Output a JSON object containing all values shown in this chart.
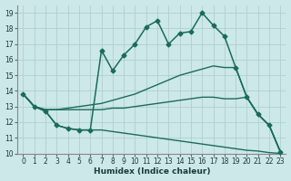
{
  "xlabel": "Humidex (Indice chaleur)",
  "xlim": [
    -0.5,
    23.5
  ],
  "ylim": [
    10,
    19.5
  ],
  "xticks": [
    0,
    1,
    2,
    3,
    4,
    5,
    6,
    7,
    8,
    9,
    10,
    11,
    12,
    13,
    14,
    15,
    16,
    17,
    18,
    19,
    20,
    21,
    22,
    23
  ],
  "yticks": [
    10,
    11,
    12,
    13,
    14,
    15,
    16,
    17,
    18,
    19
  ],
  "background_color": "#cce8e8",
  "grid_color": "#b0d0d0",
  "line_color": "#1a6b5a",
  "series": [
    {
      "x": [
        0,
        1,
        2,
        3,
        4,
        5,
        6,
        7,
        8,
        9,
        10,
        11,
        12,
        13,
        14,
        15,
        16,
        17,
        18,
        19,
        20,
        21,
        22,
        23
      ],
      "y": [
        13.8,
        13.0,
        12.7,
        11.8,
        11.6,
        11.5,
        11.5,
        16.6,
        15.3,
        16.3,
        17.0,
        18.1,
        18.5,
        17.0,
        17.7,
        17.8,
        19.0,
        18.2,
        17.5,
        15.5,
        13.6,
        12.5,
        11.8,
        10.1
      ],
      "marker": "D",
      "marker_size": 2.5,
      "linewidth": 1.1
    },
    {
      "x": [
        0,
        1,
        2,
        3,
        4,
        5,
        6,
        7,
        8,
        9,
        10,
        11,
        12,
        13,
        14,
        15,
        16,
        17,
        18,
        19,
        20,
        21,
        22,
        23
      ],
      "y": [
        13.8,
        13.0,
        12.8,
        12.8,
        12.9,
        13.0,
        13.1,
        13.2,
        13.4,
        13.6,
        13.8,
        14.1,
        14.4,
        14.7,
        15.0,
        15.2,
        15.4,
        15.6,
        15.5,
        15.5,
        13.6,
        12.5,
        11.8,
        10.1
      ],
      "marker": null,
      "linewidth": 1.0
    },
    {
      "x": [
        0,
        1,
        2,
        3,
        4,
        5,
        6,
        7,
        8,
        9,
        10,
        11,
        12,
        13,
        14,
        15,
        16,
        17,
        18,
        19,
        20,
        21,
        22,
        23
      ],
      "y": [
        13.8,
        13.0,
        12.8,
        12.8,
        12.8,
        12.8,
        12.8,
        12.8,
        12.9,
        12.9,
        13.0,
        13.1,
        13.2,
        13.3,
        13.4,
        13.5,
        13.6,
        13.6,
        13.5,
        13.5,
        13.6,
        12.5,
        11.8,
        10.1
      ],
      "marker": null,
      "linewidth": 1.0
    },
    {
      "x": [
        0,
        1,
        2,
        3,
        4,
        5,
        6,
        7,
        8,
        9,
        10,
        11,
        12,
        13,
        14,
        15,
        16,
        17,
        18,
        19,
        20,
        21,
        22,
        23
      ],
      "y": [
        13.8,
        13.0,
        12.7,
        11.8,
        11.6,
        11.5,
        11.5,
        11.5,
        11.4,
        11.3,
        11.2,
        11.1,
        11.0,
        10.9,
        10.8,
        10.7,
        10.6,
        10.5,
        10.4,
        10.3,
        10.2,
        10.15,
        10.05,
        10.0
      ],
      "marker": null,
      "linewidth": 1.0
    }
  ]
}
